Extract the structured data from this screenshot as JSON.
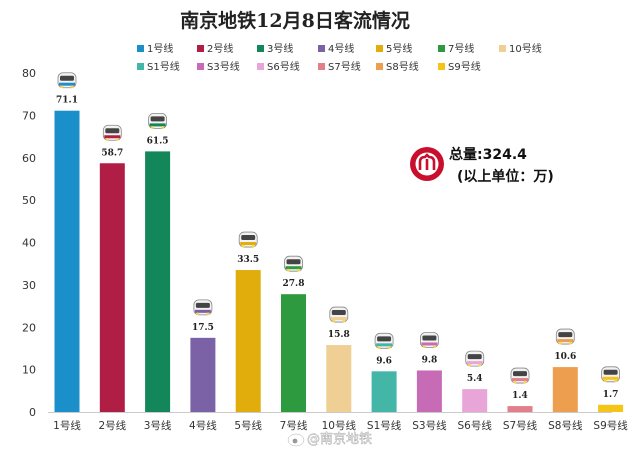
{
  "chart_data": {
    "type": "bar",
    "title": "南京地铁12月8日客流情况",
    "categories": [
      "1号线",
      "2号线",
      "3号线",
      "4号线",
      "5号线",
      "7号线",
      "10号线",
      "S1号线",
      "S3号线",
      "S6号线",
      "S7号线",
      "S8号线",
      "S9号线"
    ],
    "values": [
      71.1,
      58.7,
      61.5,
      17.5,
      33.5,
      27.8,
      15.8,
      9.6,
      9.8,
      5.4,
      1.4,
      10.6,
      1.7
    ],
    "data_labels": [
      "71.1",
      "58.7",
      "61.5",
      "17.5",
      "33.5",
      "27.8",
      "15.8",
      "9.6",
      "9.8",
      "5.4",
      "1.4",
      "10.6",
      "1.7"
    ],
    "colors": [
      "#1a8fc9",
      "#b01e45",
      "#13875a",
      "#7b61a5",
      "#e0ad0d",
      "#2d9a3f",
      "#f0cf95",
      "#43b6a8",
      "#c86bb7",
      "#e8a6d8",
      "#e27f8b",
      "#ee9e4f",
      "#f4c516"
    ],
    "ylim": [
      0,
      80
    ],
    "yticks": [
      "0",
      "10",
      "20",
      "30",
      "40",
      "50",
      "60",
      "70",
      "80"
    ],
    "xlabel": "",
    "ylabel": "",
    "legend": {
      "position": "top",
      "entries": [
        "1号线",
        "2号线",
        "3号线",
        "4号线",
        "5号线",
        "7号线",
        "10号线",
        "S1号线",
        "S3号线",
        "S6号线",
        "S7号线",
        "S8号线",
        "S9号线"
      ]
    },
    "grid": false,
    "annotation": {
      "total": "总量:324.4",
      "unit_note": "(以上单位：万)"
    }
  },
  "watermark": "@南京地铁",
  "icons": {
    "logo": "nanjing-metro-logo-icon",
    "train": "train-icon",
    "weibo": "weibo-icon"
  }
}
